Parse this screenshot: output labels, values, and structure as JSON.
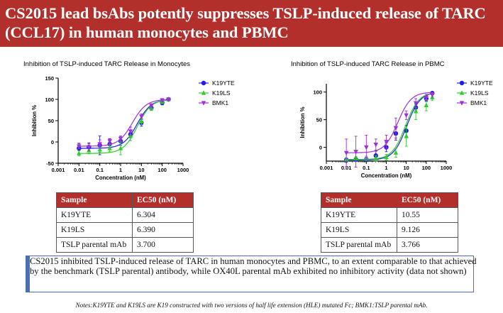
{
  "header": {
    "title": "CS2015 lead bsAbs potently suppresses TSLP-induced release of TARC (CCL17) in human monocytes and PBMC"
  },
  "colors": {
    "banner": "#b22f2c",
    "K19YTE": "#1f1fe0",
    "K19LS": "#2ecc2e",
    "BMK1": "#a030d8",
    "accent": "#4a6fb5"
  },
  "chart_data": [
    {
      "type": "line",
      "title": "Inhibition of TSLP-induced TARC Release in Monocytes",
      "xlabel": "Concentration (nM)",
      "ylabel": "Inhibition %",
      "xscale": "log",
      "xlim": [
        0.001,
        1000
      ],
      "ylim": [
        -50,
        150
      ],
      "xticks": [
        "0.001",
        "0.01",
        "0.1",
        "1",
        "10",
        "100",
        "1000"
      ],
      "yticks": [
        "-50",
        "0",
        "50",
        "100",
        "150"
      ],
      "x": [
        0.01,
        0.03,
        0.1,
        0.3,
        1,
        3,
        10,
        30,
        100,
        200
      ],
      "legend": "right",
      "series": [
        {
          "name": "K19YTE",
          "marker": "circle",
          "ec50": 6.304,
          "values": [
            -15,
            -12,
            -8,
            -5,
            2,
            18,
            45,
            80,
            92,
            100
          ],
          "errors": [
            12,
            10,
            22,
            12,
            10,
            8,
            8,
            6,
            5,
            3
          ]
        },
        {
          "name": "K19LS",
          "marker": "triangle",
          "ec50": 6.39,
          "values": [
            -27,
            -20,
            -18,
            -15,
            -15,
            15,
            48,
            80,
            95,
            100
          ],
          "errors": [
            6,
            8,
            6,
            8,
            15,
            12,
            8,
            6,
            5,
            4
          ]
        },
        {
          "name": "BMK1",
          "marker": "inv-triangle",
          "ec50": 3.7,
          "values": [
            -10,
            -12,
            -5,
            2,
            8,
            25,
            60,
            85,
            98,
            100
          ],
          "errors": [
            6,
            8,
            10,
            6,
            6,
            10,
            6,
            5,
            4,
            3
          ]
        }
      ]
    },
    {
      "type": "line",
      "title": "Inhibition of TSLP-induced TARC Release in PBMC",
      "xlabel": "Concentration (nM)",
      "ylabel": "Inhibition %",
      "xscale": "log",
      "xlim": [
        0.001,
        1000
      ],
      "ylim": [
        -25,
        115
      ],
      "xticks": [
        "0.001",
        "0.01",
        "0.1",
        "1",
        "10",
        "100",
        "1000"
      ],
      "yticks": [
        "0",
        "50",
        "100"
      ],
      "x": [
        0.01,
        0.03,
        0.1,
        0.3,
        1,
        3,
        10,
        30,
        100,
        200
      ],
      "legend": "right",
      "series": [
        {
          "name": "K19YTE",
          "marker": "circle",
          "ec50": 10.55,
          "values": [
            -23,
            -22,
            -22,
            -15,
            0,
            25,
            30,
            72,
            88,
            98
          ],
          "errors": [
            4,
            3,
            4,
            8,
            8,
            12,
            10,
            6,
            5,
            3
          ]
        },
        {
          "name": "K19LS",
          "marker": "triangle",
          "ec50": 9.126,
          "values": [
            -22,
            -20,
            -20,
            -20,
            -18,
            -10,
            20,
            65,
            76,
            90
          ],
          "errors": [
            3,
            3,
            4,
            5,
            5,
            8,
            18,
            15,
            10,
            5
          ]
        },
        {
          "name": "BMK1",
          "marker": "inv-triangle",
          "ec50": 3.766,
          "values": [
            -10,
            -8,
            0,
            5,
            10,
            35,
            58,
            80,
            90,
            95
          ],
          "errors": [
            25,
            28,
            22,
            10,
            12,
            18,
            8,
            8,
            6,
            4
          ]
        }
      ]
    }
  ],
  "tables": {
    "monocytes": {
      "headers": [
        "Sample",
        "EC50 (nM)"
      ],
      "rows": [
        [
          "K19YTE",
          "6.304"
        ],
        [
          "K19LS",
          "6.390"
        ],
        [
          "TSLP parental mAb",
          "3.700"
        ]
      ]
    },
    "pbmc": {
      "headers": [
        "Sample",
        "EC50 (nM)"
      ],
      "rows": [
        [
          "K19YTE",
          "10.55"
        ],
        [
          "K19LS",
          "9.126"
        ],
        [
          "TSLP parental mAb",
          "3.766"
        ]
      ]
    }
  },
  "summary": "CS2015 inhibited TSLP-induced release of TARC in human monocytes and PBMC, to an extent comparable to that achieved by the benchmark (TSLP parental) antibody, while OX40L parental mAb exhibited no inhibitory activity (data not shown)",
  "footnote": "Notes:K19YTE and K19LS are K19 constructed with two versions of half life extension (HLE) mutated Fc; BMK1:TSLP parental mAb."
}
